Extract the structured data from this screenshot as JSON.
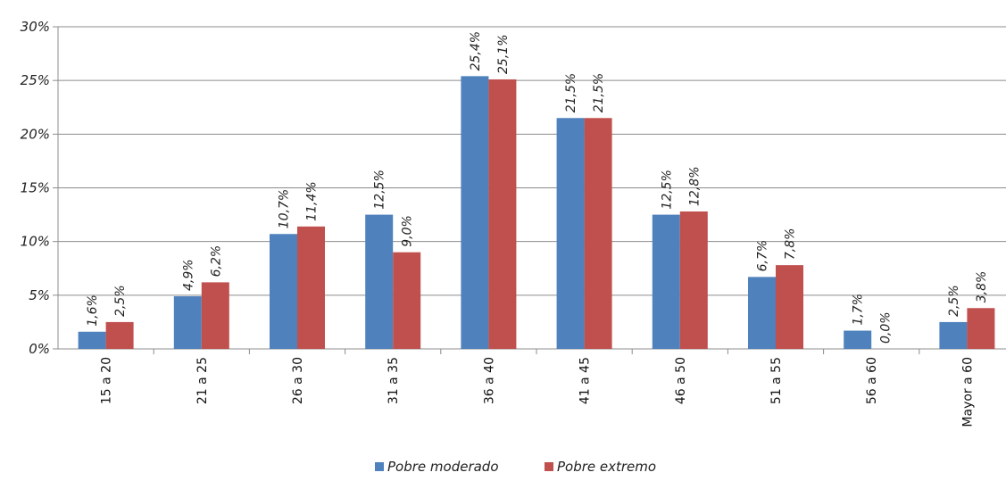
{
  "chart_data": {
    "type": "bar",
    "categories": [
      "15 a 20",
      "21 a 25",
      "26 a 30",
      "31 a 35",
      "36 a 40",
      "41 a 45",
      "46 a 50",
      "51 a 55",
      "56 a 60",
      "Mayor a 60"
    ],
    "series": [
      {
        "name": "Pobre moderado",
        "color": "#4F81BD",
        "values": [
          1.6,
          4.9,
          10.7,
          12.5,
          25.4,
          21.5,
          12.5,
          6.7,
          1.7,
          2.5
        ],
        "labels": [
          "1,6%",
          "4,9%",
          "10,7%",
          "12,5%",
          "25,4%",
          "21,5%",
          "12,5%",
          "6,7%",
          "1,7%",
          "2,5%"
        ]
      },
      {
        "name": "Pobre extremo",
        "color": "#C0504D",
        "values": [
          2.5,
          6.2,
          11.4,
          9.0,
          25.1,
          21.5,
          12.8,
          7.8,
          0.0,
          3.8
        ],
        "labels": [
          "2,5%",
          "6,2%",
          "11,4%",
          "9,0%",
          "25,1%",
          "21,5%",
          "12,8%",
          "7,8%",
          "0,0%",
          "3,8%"
        ]
      }
    ],
    "yticks": [
      "0%",
      "5%",
      "10%",
      "15%",
      "20%",
      "25%",
      "30%"
    ],
    "ylim": [
      0,
      30
    ],
    "grid": true,
    "legend_position": "bottom"
  }
}
